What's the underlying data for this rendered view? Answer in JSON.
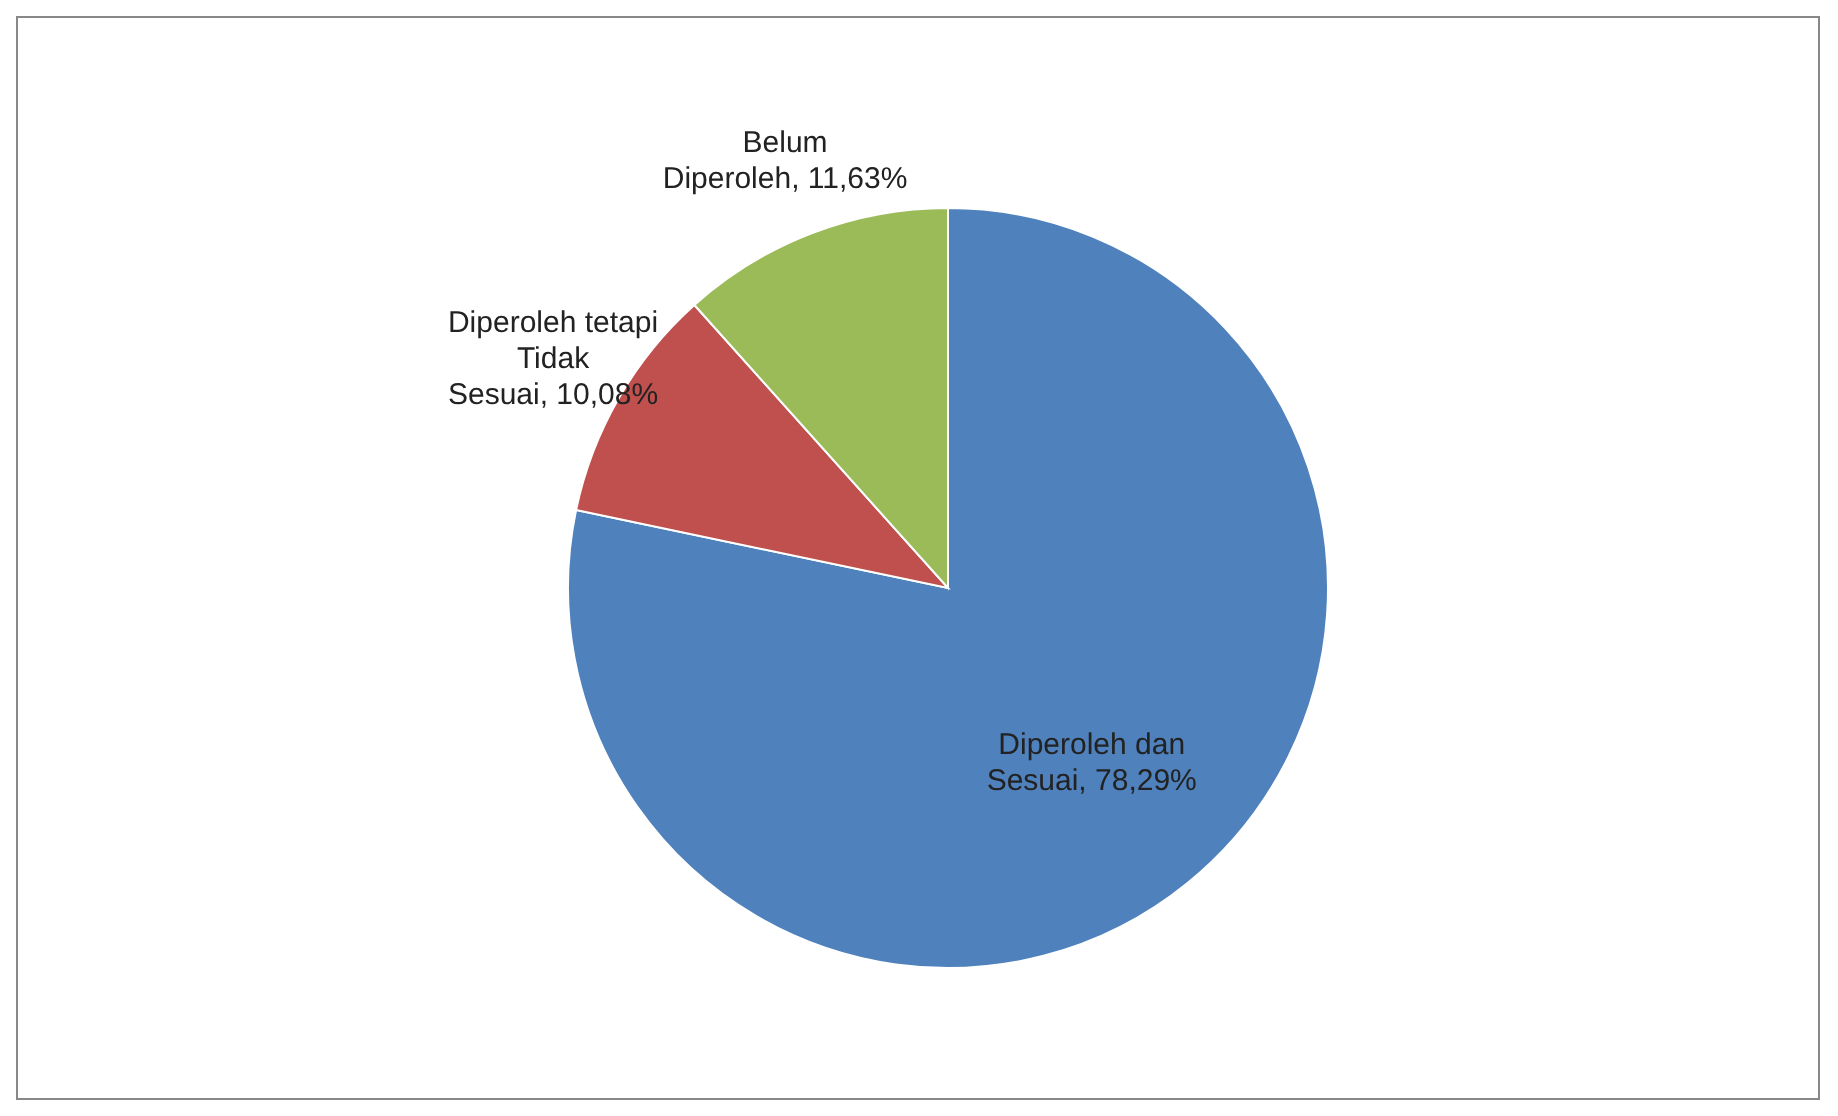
{
  "chart_data": {
    "type": "pie",
    "categories": [
      "Diperoleh dan Sesuai",
      "Diperoleh tetapi Tidak Sesuai",
      "Belum Diperoleh"
    ],
    "values": [
      78.29,
      10.08,
      11.63
    ],
    "value_labels": [
      "78,29%",
      "10,08%",
      "11,63%"
    ],
    "colors": [
      "#4f81bd",
      "#c0504d",
      "#9bbb59"
    ],
    "legend": false
  }
}
